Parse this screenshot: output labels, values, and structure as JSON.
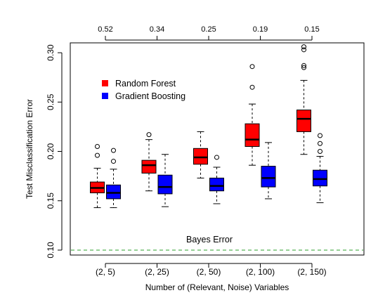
{
  "chart_data": {
    "type": "box",
    "xlabel": "Number of (Relevant, Noise) Variables",
    "ylabel": "Test Misclassification Error",
    "ylim": [
      0.095,
      0.31
    ],
    "yticks": [
      0.1,
      0.15,
      0.2,
      0.25,
      0.3
    ],
    "ytick_labels": [
      "0.10",
      "0.15",
      "0.20",
      "0.25",
      "0.30"
    ],
    "categories": [
      "(2, 5)",
      "(2, 25)",
      "(2, 50)",
      "(2, 100)",
      "(2, 150)"
    ],
    "top_labels": [
      "0.52",
      "0.34",
      "0.25",
      "0.19",
      "0.15"
    ],
    "reference_line": {
      "value": 0.1,
      "label": "Bayes Error",
      "color": "#2ca02c",
      "style": "dashed"
    },
    "legend": {
      "position": "top-left"
    },
    "series": [
      {
        "name": "Random Forest",
        "color": "#ff0000",
        "boxes": [
          {
            "min": 0.143,
            "q1": 0.158,
            "median": 0.163,
            "q3": 0.169,
            "max": 0.183,
            "outliers": [
              0.196,
              0.205
            ]
          },
          {
            "min": 0.16,
            "q1": 0.178,
            "median": 0.186,
            "q3": 0.191,
            "max": 0.212,
            "outliers": [
              0.217
            ]
          },
          {
            "min": 0.173,
            "q1": 0.187,
            "median": 0.194,
            "q3": 0.203,
            "max": 0.22,
            "outliers": []
          },
          {
            "min": 0.186,
            "q1": 0.205,
            "median": 0.212,
            "q3": 0.228,
            "max": 0.248,
            "outliers": [
              0.265,
              0.286
            ]
          },
          {
            "min": 0.197,
            "q1": 0.22,
            "median": 0.233,
            "q3": 0.242,
            "max": 0.272,
            "outliers": [
              0.285,
              0.287,
              0.303,
              0.306
            ]
          }
        ]
      },
      {
        "name": "Gradient Boosting",
        "color": "#0000ff",
        "boxes": [
          {
            "min": 0.143,
            "q1": 0.152,
            "median": 0.158,
            "q3": 0.166,
            "max": 0.182,
            "outliers": [
              0.19,
              0.201
            ]
          },
          {
            "min": 0.144,
            "q1": 0.157,
            "median": 0.164,
            "q3": 0.176,
            "max": 0.197,
            "outliers": []
          },
          {
            "min": 0.147,
            "q1": 0.16,
            "median": 0.165,
            "q3": 0.173,
            "max": 0.184,
            "outliers": [
              0.194
            ]
          },
          {
            "min": 0.152,
            "q1": 0.164,
            "median": 0.173,
            "q3": 0.185,
            "max": 0.209,
            "outliers": []
          },
          {
            "min": 0.148,
            "q1": 0.165,
            "median": 0.172,
            "q3": 0.181,
            "max": 0.195,
            "outliers": [
              0.2,
              0.208,
              0.216
            ]
          }
        ]
      }
    ]
  }
}
